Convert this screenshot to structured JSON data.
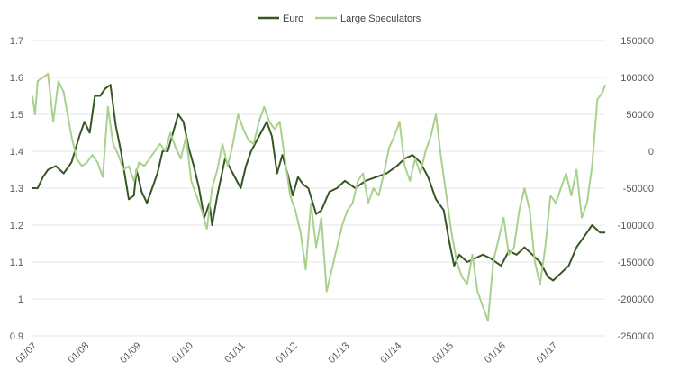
{
  "chart_data": {
    "type": "line",
    "title": "",
    "legend": {
      "placement": "top-center"
    },
    "x_tick_labels": [
      "01/07",
      "01/08",
      "01/09",
      "01/10",
      "01/11",
      "01/12",
      "01/13",
      "01/14",
      "01/15",
      "01/16",
      "01/17"
    ],
    "x_range": [
      2007.0,
      2018.0
    ],
    "left_axis": {
      "ylim": [
        0.9,
        1.7
      ],
      "ticks": [
        0.9,
        1.0,
        1.1,
        1.2,
        1.3,
        1.4,
        1.5,
        1.6,
        1.7
      ],
      "tick_labels": [
        "0.9",
        "1",
        "1.1",
        "1.2",
        "1.3",
        "1.4",
        "1.5",
        "1.6",
        "1.7"
      ]
    },
    "right_axis": {
      "ylim": [
        -250000,
        150000
      ],
      "ticks": [
        -250000,
        -200000,
        -150000,
        -100000,
        -50000,
        0,
        50000,
        100000,
        150000
      ],
      "tick_labels": [
        "-250000",
        "-200000",
        "-150000",
        "-100000",
        "-50000",
        "0",
        "50000",
        "100000",
        "150000"
      ]
    },
    "grid": "horizontal",
    "series": [
      {
        "name": "Euro",
        "axis": "left",
        "color": "#375623",
        "x": [
          2007.0,
          2007.1,
          2007.2,
          2007.3,
          2007.45,
          2007.6,
          2007.75,
          2007.9,
          2008.0,
          2008.1,
          2008.2,
          2008.3,
          2008.4,
          2008.5,
          2008.6,
          2008.7,
          2008.85,
          2008.95,
          2009.0,
          2009.1,
          2009.2,
          2009.3,
          2009.4,
          2009.5,
          2009.6,
          2009.7,
          2009.8,
          2009.9,
          2010.0,
          2010.1,
          2010.2,
          2010.3,
          2010.4,
          2010.45,
          2010.55,
          2010.7,
          2010.85,
          2011.0,
          2011.1,
          2011.2,
          2011.35,
          2011.5,
          2011.6,
          2011.7,
          2011.8,
          2011.9,
          2012.0,
          2012.1,
          2012.2,
          2012.3,
          2012.45,
          2012.55,
          2012.7,
          2012.85,
          2013.0,
          2013.2,
          2013.4,
          2013.6,
          2013.8,
          2014.0,
          2014.15,
          2014.3,
          2014.45,
          2014.6,
          2014.75,
          2014.9,
          2015.0,
          2015.1,
          2015.2,
          2015.35,
          2015.5,
          2015.65,
          2015.8,
          2016.0,
          2016.15,
          2016.3,
          2016.45,
          2016.6,
          2016.75,
          2016.9,
          2017.0,
          2017.15,
          2017.3,
          2017.45,
          2017.6,
          2017.75,
          2017.9,
          2018.0
        ],
        "values": [
          1.3,
          1.3,
          1.33,
          1.35,
          1.36,
          1.34,
          1.37,
          1.44,
          1.48,
          1.45,
          1.55,
          1.55,
          1.57,
          1.58,
          1.47,
          1.4,
          1.27,
          1.28,
          1.35,
          1.29,
          1.26,
          1.3,
          1.34,
          1.4,
          1.4,
          1.45,
          1.5,
          1.48,
          1.41,
          1.36,
          1.3,
          1.22,
          1.26,
          1.2,
          1.28,
          1.38,
          1.34,
          1.3,
          1.36,
          1.4,
          1.44,
          1.48,
          1.44,
          1.34,
          1.39,
          1.34,
          1.28,
          1.33,
          1.31,
          1.3,
          1.23,
          1.24,
          1.29,
          1.3,
          1.32,
          1.3,
          1.32,
          1.33,
          1.34,
          1.36,
          1.38,
          1.39,
          1.37,
          1.33,
          1.27,
          1.24,
          1.16,
          1.09,
          1.12,
          1.1,
          1.11,
          1.12,
          1.11,
          1.09,
          1.13,
          1.12,
          1.14,
          1.12,
          1.1,
          1.06,
          1.05,
          1.07,
          1.09,
          1.14,
          1.17,
          1.2,
          1.18,
          1.18
        ]
      },
      {
        "name": "Large Speculators",
        "axis": "right",
        "color": "#a9d18e",
        "x": [
          2007.0,
          2007.05,
          2007.1,
          2007.2,
          2007.3,
          2007.4,
          2007.5,
          2007.6,
          2007.7,
          2007.75,
          2007.85,
          2007.95,
          2008.05,
          2008.15,
          2008.25,
          2008.35,
          2008.45,
          2008.55,
          2008.65,
          2008.75,
          2008.85,
          2008.95,
          2009.05,
          2009.15,
          2009.25,
          2009.35,
          2009.45,
          2009.55,
          2009.65,
          2009.75,
          2009.85,
          2009.95,
          2010.05,
          2010.15,
          2010.25,
          2010.35,
          2010.45,
          2010.55,
          2010.65,
          2010.75,
          2010.85,
          2010.95,
          2011.05,
          2011.15,
          2011.25,
          2011.35,
          2011.45,
          2011.55,
          2011.65,
          2011.75,
          2011.85,
          2011.95,
          2012.05,
          2012.15,
          2012.25,
          2012.35,
          2012.45,
          2012.55,
          2012.65,
          2012.75,
          2012.85,
          2012.95,
          2013.05,
          2013.15,
          2013.25,
          2013.35,
          2013.45,
          2013.55,
          2013.65,
          2013.75,
          2013.85,
          2013.95,
          2014.05,
          2014.15,
          2014.25,
          2014.35,
          2014.45,
          2014.55,
          2014.65,
          2014.75,
          2014.85,
          2014.95,
          2015.05,
          2015.15,
          2015.25,
          2015.35,
          2015.45,
          2015.55,
          2015.65,
          2015.75,
          2015.85,
          2015.95,
          2016.05,
          2016.15,
          2016.25,
          2016.35,
          2016.45,
          2016.55,
          2016.65,
          2016.75,
          2016.85,
          2016.95,
          2017.05,
          2017.15,
          2017.25,
          2017.35,
          2017.45,
          2017.55,
          2017.65,
          2017.75,
          2017.85,
          2017.95,
          2018.0
        ],
        "values": [
          75000,
          50000,
          95000,
          100000,
          105000,
          40000,
          95000,
          80000,
          40000,
          20000,
          -10000,
          -20000,
          -15000,
          -5000,
          -15000,
          -35000,
          60000,
          10000,
          -5000,
          -25000,
          -20000,
          -40000,
          -15000,
          -20000,
          -10000,
          0,
          10000,
          0,
          25000,
          5000,
          -10000,
          20000,
          -40000,
          -60000,
          -80000,
          -105000,
          -50000,
          -25000,
          10000,
          -20000,
          10000,
          50000,
          30000,
          15000,
          10000,
          40000,
          60000,
          40000,
          30000,
          40000,
          -10000,
          -60000,
          -80000,
          -110000,
          -160000,
          -70000,
          -130000,
          -90000,
          -190000,
          -160000,
          -130000,
          -100000,
          -80000,
          -70000,
          -40000,
          -30000,
          -70000,
          -50000,
          -60000,
          -30000,
          5000,
          20000,
          40000,
          -20000,
          -40000,
          -10000,
          -30000,
          0,
          20000,
          50000,
          -10000,
          -60000,
          -110000,
          -150000,
          -170000,
          -180000,
          -140000,
          -190000,
          -210000,
          -230000,
          -150000,
          -120000,
          -90000,
          -140000,
          -130000,
          -80000,
          -50000,
          -80000,
          -150000,
          -180000,
          -130000,
          -60000,
          -70000,
          -50000,
          -30000,
          -60000,
          -25000,
          -90000,
          -70000,
          -20000,
          70000,
          80000,
          90000
        ]
      }
    ]
  }
}
